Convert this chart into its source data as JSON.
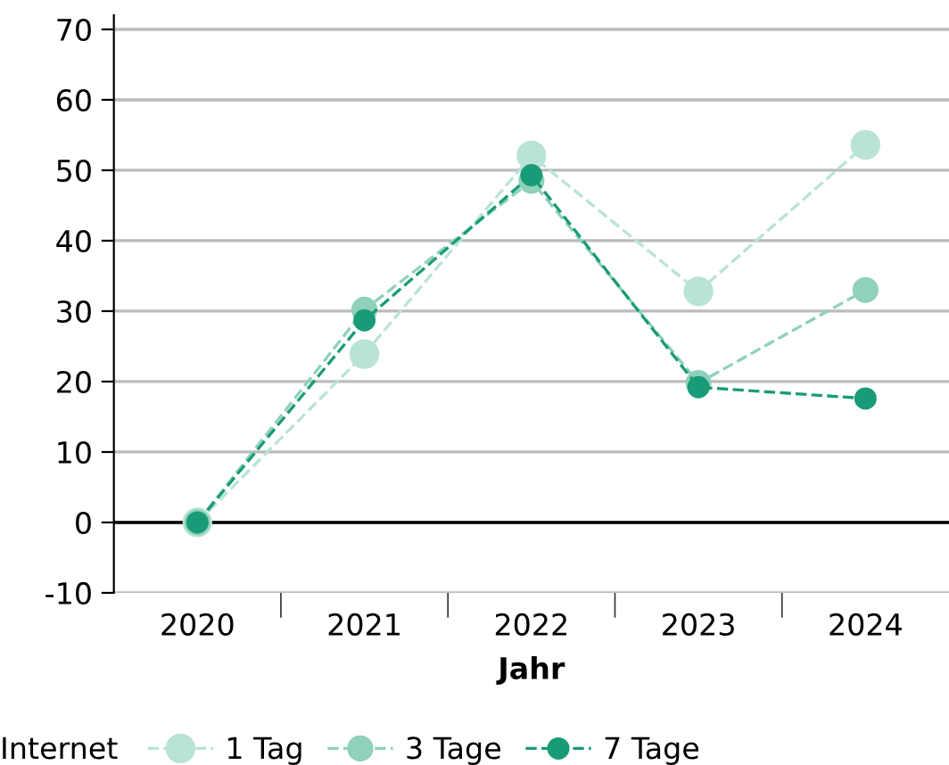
{
  "chart_data": {
    "type": "line",
    "xlabel": "Jahr",
    "legend_title": "Internet",
    "categories": [
      "2020",
      "2021",
      "2022",
      "2023",
      "2024"
    ],
    "series": [
      {
        "name": "1 Tag",
        "color": "#b9e3d6",
        "values": [
          0,
          23.9,
          52.1,
          32.8,
          53.6
        ]
      },
      {
        "name": "3 Tage",
        "color": "#8fd1bb",
        "values": [
          0,
          30.2,
          48.5,
          19.8,
          33
        ]
      },
      {
        "name": "7 Tage",
        "color": "#1a9b78",
        "values": [
          0,
          28.7,
          49.3,
          19.2,
          17.6
        ]
      }
    ],
    "ylim": [
      -10,
      72
    ],
    "yticks": [
      -10,
      0,
      10,
      20,
      30,
      40,
      50,
      60,
      70
    ],
    "grid": "y",
    "legend": "bottom",
    "marker": "circle",
    "line_style": "dashed",
    "ref_lines": [
      {
        "axis": "y",
        "value": 0,
        "color": "#000000"
      }
    ]
  }
}
